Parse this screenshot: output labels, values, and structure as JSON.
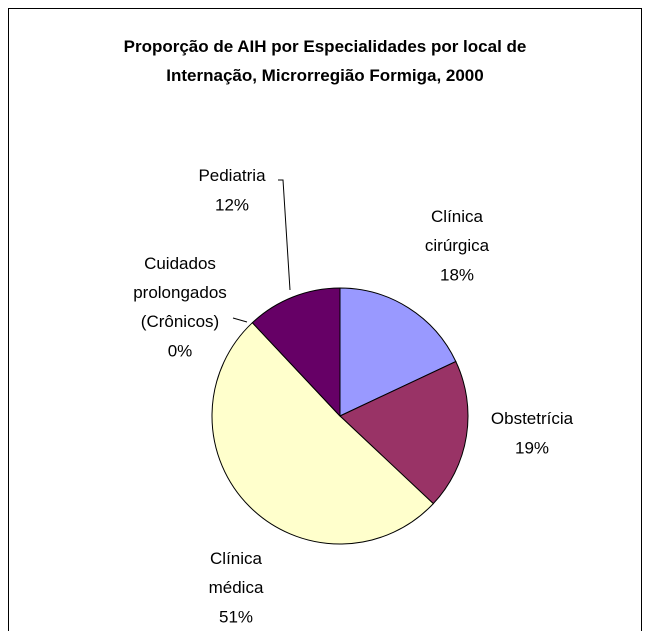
{
  "chart_data": {
    "type": "pie",
    "title": "Proporção de AIH por Especialidades por local de Internação, Microrregião Formiga, 2000",
    "categories": [
      "Clínica cirúrgica",
      "Obstetrícia",
      "Clínica médica",
      "Cuidados prolongados (Crônicos)",
      "Pediatria"
    ],
    "values": [
      18,
      19,
      51,
      0,
      12
    ],
    "value_labels": [
      "18%",
      "19%",
      "51%",
      "0%",
      "12%"
    ],
    "colors": [
      "#9999ff",
      "#993366",
      "#ffffcc",
      "#ccffff",
      "#660066"
    ]
  }
}
